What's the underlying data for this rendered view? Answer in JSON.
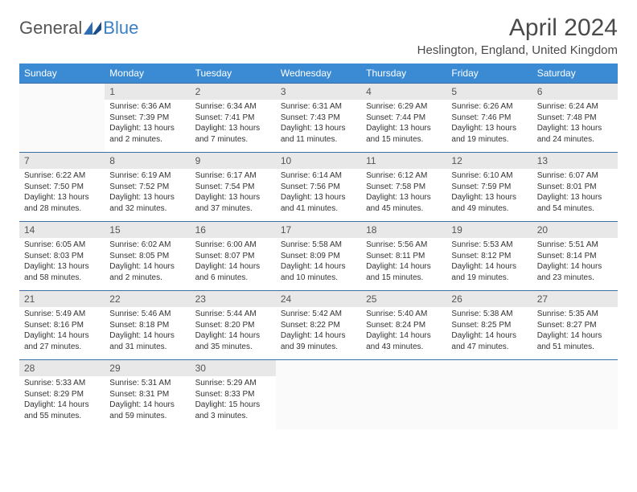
{
  "brand": {
    "part1": "General",
    "part2": "Blue"
  },
  "title": "April 2024",
  "location": "Heslington, England, United Kingdom",
  "colors": {
    "header_bg": "#3b8bd4",
    "header_text": "#ffffff",
    "daynum_bg": "#e8e8e8",
    "row_border": "#3b6fa8",
    "body_text": "#333333",
    "title_text": "#4a4a4a",
    "logo_blue": "#3b7fc4"
  },
  "weekdays": [
    "Sunday",
    "Monday",
    "Tuesday",
    "Wednesday",
    "Thursday",
    "Friday",
    "Saturday"
  ],
  "layout": {
    "rows": 5,
    "cols": 7,
    "first_col_offset": 1,
    "last_day": 30
  },
  "days": {
    "1": {
      "sunrise": "Sunrise: 6:36 AM",
      "sunset": "Sunset: 7:39 PM",
      "dl1": "Daylight: 13 hours",
      "dl2": "and 2 minutes."
    },
    "2": {
      "sunrise": "Sunrise: 6:34 AM",
      "sunset": "Sunset: 7:41 PM",
      "dl1": "Daylight: 13 hours",
      "dl2": "and 7 minutes."
    },
    "3": {
      "sunrise": "Sunrise: 6:31 AM",
      "sunset": "Sunset: 7:43 PM",
      "dl1": "Daylight: 13 hours",
      "dl2": "and 11 minutes."
    },
    "4": {
      "sunrise": "Sunrise: 6:29 AM",
      "sunset": "Sunset: 7:44 PM",
      "dl1": "Daylight: 13 hours",
      "dl2": "and 15 minutes."
    },
    "5": {
      "sunrise": "Sunrise: 6:26 AM",
      "sunset": "Sunset: 7:46 PM",
      "dl1": "Daylight: 13 hours",
      "dl2": "and 19 minutes."
    },
    "6": {
      "sunrise": "Sunrise: 6:24 AM",
      "sunset": "Sunset: 7:48 PM",
      "dl1": "Daylight: 13 hours",
      "dl2": "and 24 minutes."
    },
    "7": {
      "sunrise": "Sunrise: 6:22 AM",
      "sunset": "Sunset: 7:50 PM",
      "dl1": "Daylight: 13 hours",
      "dl2": "and 28 minutes."
    },
    "8": {
      "sunrise": "Sunrise: 6:19 AM",
      "sunset": "Sunset: 7:52 PM",
      "dl1": "Daylight: 13 hours",
      "dl2": "and 32 minutes."
    },
    "9": {
      "sunrise": "Sunrise: 6:17 AM",
      "sunset": "Sunset: 7:54 PM",
      "dl1": "Daylight: 13 hours",
      "dl2": "and 37 minutes."
    },
    "10": {
      "sunrise": "Sunrise: 6:14 AM",
      "sunset": "Sunset: 7:56 PM",
      "dl1": "Daylight: 13 hours",
      "dl2": "and 41 minutes."
    },
    "11": {
      "sunrise": "Sunrise: 6:12 AM",
      "sunset": "Sunset: 7:58 PM",
      "dl1": "Daylight: 13 hours",
      "dl2": "and 45 minutes."
    },
    "12": {
      "sunrise": "Sunrise: 6:10 AM",
      "sunset": "Sunset: 7:59 PM",
      "dl1": "Daylight: 13 hours",
      "dl2": "and 49 minutes."
    },
    "13": {
      "sunrise": "Sunrise: 6:07 AM",
      "sunset": "Sunset: 8:01 PM",
      "dl1": "Daylight: 13 hours",
      "dl2": "and 54 minutes."
    },
    "14": {
      "sunrise": "Sunrise: 6:05 AM",
      "sunset": "Sunset: 8:03 PM",
      "dl1": "Daylight: 13 hours",
      "dl2": "and 58 minutes."
    },
    "15": {
      "sunrise": "Sunrise: 6:02 AM",
      "sunset": "Sunset: 8:05 PM",
      "dl1": "Daylight: 14 hours",
      "dl2": "and 2 minutes."
    },
    "16": {
      "sunrise": "Sunrise: 6:00 AM",
      "sunset": "Sunset: 8:07 PM",
      "dl1": "Daylight: 14 hours",
      "dl2": "and 6 minutes."
    },
    "17": {
      "sunrise": "Sunrise: 5:58 AM",
      "sunset": "Sunset: 8:09 PM",
      "dl1": "Daylight: 14 hours",
      "dl2": "and 10 minutes."
    },
    "18": {
      "sunrise": "Sunrise: 5:56 AM",
      "sunset": "Sunset: 8:11 PM",
      "dl1": "Daylight: 14 hours",
      "dl2": "and 15 minutes."
    },
    "19": {
      "sunrise": "Sunrise: 5:53 AM",
      "sunset": "Sunset: 8:12 PM",
      "dl1": "Daylight: 14 hours",
      "dl2": "and 19 minutes."
    },
    "20": {
      "sunrise": "Sunrise: 5:51 AM",
      "sunset": "Sunset: 8:14 PM",
      "dl1": "Daylight: 14 hours",
      "dl2": "and 23 minutes."
    },
    "21": {
      "sunrise": "Sunrise: 5:49 AM",
      "sunset": "Sunset: 8:16 PM",
      "dl1": "Daylight: 14 hours",
      "dl2": "and 27 minutes."
    },
    "22": {
      "sunrise": "Sunrise: 5:46 AM",
      "sunset": "Sunset: 8:18 PM",
      "dl1": "Daylight: 14 hours",
      "dl2": "and 31 minutes."
    },
    "23": {
      "sunrise": "Sunrise: 5:44 AM",
      "sunset": "Sunset: 8:20 PM",
      "dl1": "Daylight: 14 hours",
      "dl2": "and 35 minutes."
    },
    "24": {
      "sunrise": "Sunrise: 5:42 AM",
      "sunset": "Sunset: 8:22 PM",
      "dl1": "Daylight: 14 hours",
      "dl2": "and 39 minutes."
    },
    "25": {
      "sunrise": "Sunrise: 5:40 AM",
      "sunset": "Sunset: 8:24 PM",
      "dl1": "Daylight: 14 hours",
      "dl2": "and 43 minutes."
    },
    "26": {
      "sunrise": "Sunrise: 5:38 AM",
      "sunset": "Sunset: 8:25 PM",
      "dl1": "Daylight: 14 hours",
      "dl2": "and 47 minutes."
    },
    "27": {
      "sunrise": "Sunrise: 5:35 AM",
      "sunset": "Sunset: 8:27 PM",
      "dl1": "Daylight: 14 hours",
      "dl2": "and 51 minutes."
    },
    "28": {
      "sunrise": "Sunrise: 5:33 AM",
      "sunset": "Sunset: 8:29 PM",
      "dl1": "Daylight: 14 hours",
      "dl2": "and 55 minutes."
    },
    "29": {
      "sunrise": "Sunrise: 5:31 AM",
      "sunset": "Sunset: 8:31 PM",
      "dl1": "Daylight: 14 hours",
      "dl2": "and 59 minutes."
    },
    "30": {
      "sunrise": "Sunrise: 5:29 AM",
      "sunset": "Sunset: 8:33 PM",
      "dl1": "Daylight: 15 hours",
      "dl2": "and 3 minutes."
    }
  }
}
